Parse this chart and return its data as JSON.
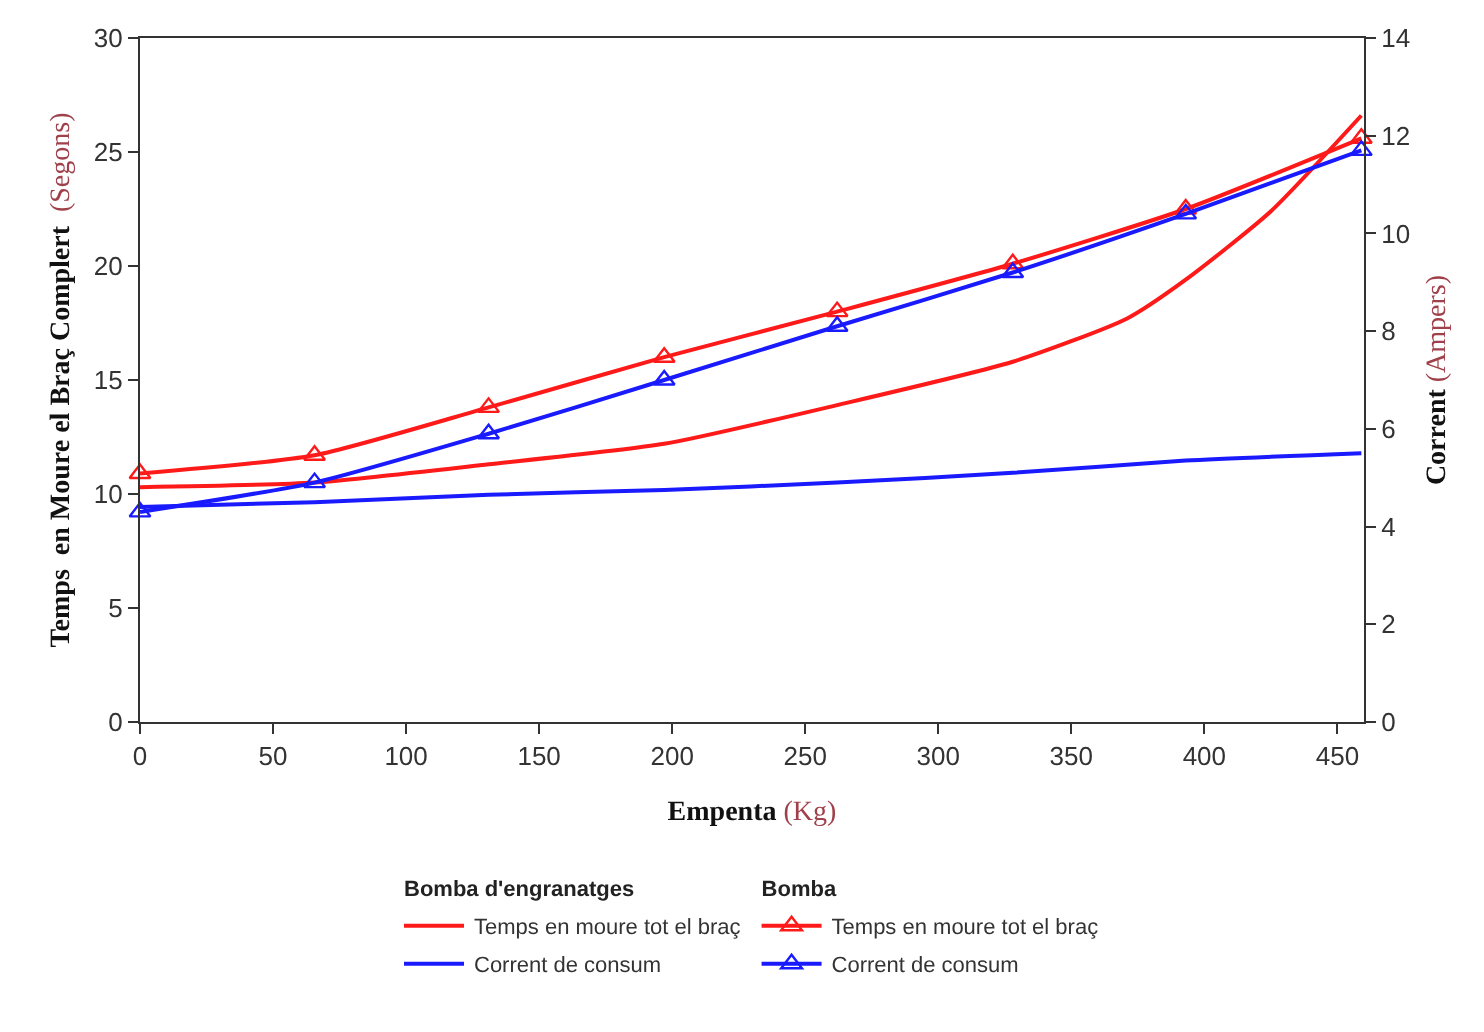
{
  "chart_data": {
    "type": "line",
    "xlabel": "Empenta (Kg)",
    "ylabel": "Temps  en Moure el Braç Complert  (Segons)",
    "y2label": "Corrent (Ampers)",
    "legend_title": [
      "Bomba d'engranatges",
      "Bomba"
    ],
    "series": [
      {
        "name": "Temps en moure tot el braç",
        "color": "#ff1a1a",
        "marker": "none",
        "x": [
          0,
          65.6,
          131,
          197,
          262,
          328,
          371,
          393,
          425,
          459
        ],
        "values": [
          10.3,
          10.5,
          11.3,
          12.2,
          13.9,
          15.8,
          17.7,
          19.4,
          22.4,
          26.6
        ]
      },
      {
        "name": "Corrent de consum",
        "color": "#1a1aff",
        "marker": "none",
        "axis": "y2",
        "x": [
          0,
          65.6,
          131,
          197,
          262,
          328,
          393,
          459
        ],
        "values": [
          4.4,
          4.5,
          4.65,
          4.75,
          4.9,
          5.1,
          5.35,
          5.5
        ]
      },
      {
        "name": "Temps en moure tot el braç",
        "color": "#ff1a1a",
        "marker": "triangle",
        "x": [
          0,
          65.6,
          131,
          197,
          262,
          328,
          393,
          459
        ],
        "values": [
          10.9,
          11.7,
          13.8,
          16.0,
          18.0,
          20.1,
          22.5,
          25.6
        ]
      },
      {
        "name": "Corrent de consum",
        "color": "#1a1aff",
        "marker": "triangle",
        "axis": "y2",
        "x": [
          0,
          65.6,
          131,
          197,
          262,
          328,
          393,
          459
        ],
        "values": [
          4.3,
          4.9,
          5.9,
          7.0,
          8.1,
          9.2,
          10.4,
          11.7
        ]
      }
    ],
    "xlim": [
      0,
      460
    ],
    "xticks": [
      0,
      50,
      100,
      150,
      200,
      250,
      300,
      350,
      400,
      450
    ],
    "ylim": [
      0,
      30
    ],
    "yticks": [
      0,
      5,
      10,
      15,
      20,
      25,
      30
    ],
    "y2lim": [
      0,
      14
    ],
    "y2ticks": [
      0,
      2,
      4,
      6,
      8,
      10,
      12,
      14
    ],
    "legend": "bottom",
    "line_style": "solid"
  }
}
